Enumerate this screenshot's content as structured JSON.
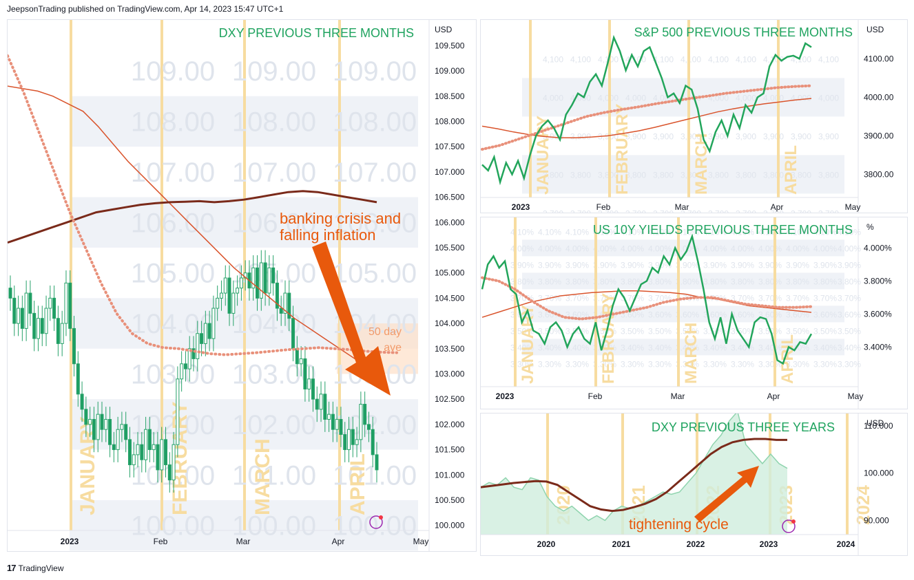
{
  "header": {
    "text": "JeepsonTrading published on TradingView.com, Apr 14, 2023 15:47 UTC+1"
  },
  "footer": {
    "logo": "17",
    "brand": "TradingView"
  },
  "colors": {
    "up": "#26a269",
    "down": "#1e9e63",
    "line_green": "#22a55b",
    "title_green": "#1fa35f",
    "ma_dark": "#7a2a1a",
    "ma_orange": "#d9532b",
    "ma_dotted": "#e8907a",
    "month_band": "#f7dca0",
    "price_band": "#e8edf3",
    "annotation": "#e8590c"
  },
  "chart_data": [
    {
      "id": "dxy3m",
      "type": "candlestick",
      "title": "DXY PREVIOUS THREE MONTHS",
      "unit": "USD",
      "ylim": [
        99.9,
        109.9
      ],
      "y_ticks": [
        "109.500",
        "109.000",
        "108.500",
        "108.000",
        "107.500",
        "107.000",
        "106.500",
        "106.000",
        "105.500",
        "105.000",
        "104.500",
        "104.000",
        "103.500",
        "103.000",
        "102.500",
        "102.000",
        "101.500",
        "101.000",
        "100.500",
        "100.000"
      ],
      "x_labels": [
        "2023",
        "Feb",
        "Mar",
        "Apr",
        "May"
      ],
      "month_labels": [
        "JANUARY",
        "FEBRUARY",
        "MARCH",
        "APRIL"
      ],
      "grid_values": [
        "109.00",
        "108.00",
        "107.00",
        "106.00",
        "105.00",
        "104.00",
        "103.00",
        "102.00",
        "101.00",
        "100.00"
      ],
      "closes": [
        104.5,
        104.0,
        104.3,
        103.9,
        104.6,
        104.2,
        103.7,
        104.1,
        103.8,
        104.3,
        104.5,
        104.1,
        103.6,
        104.0,
        104.8,
        103.9,
        103.2,
        102.6,
        102.3,
        102.0,
        102.1,
        101.7,
        102.2,
        101.9,
        102.1,
        101.6,
        101.5,
        101.9,
        102.0,
        101.7,
        101.2,
        101.4,
        101.6,
        101.3,
        101.9,
        101.5,
        101.6,
        101.1,
        101.7,
        101.2,
        100.9,
        101.6,
        102.9,
        103.2,
        103.1,
        103.5,
        103.3,
        103.8,
        103.6,
        104.0,
        103.7,
        104.3,
        104.5,
        104.6,
        104.9,
        104.2,
        104.6,
        104.7,
        104.9,
        105.0,
        104.7,
        105.1,
        104.5,
        105.2,
        104.6,
        105.1,
        104.8,
        104.3,
        104.2,
        104.6,
        104.1,
        103.5,
        103.2,
        103.3,
        102.7,
        102.9,
        102.5,
        102.3,
        102.6,
        102.1,
        102.2,
        101.9,
        102.1,
        101.8,
        101.5,
        101.9,
        101.6,
        101.7,
        102.4,
        102.0,
        101.9,
        101.4,
        101.1
      ],
      "ma200": [
        105.6,
        105.7,
        105.8,
        105.9,
        106.0,
        106.1,
        106.2,
        106.25,
        106.3,
        106.35,
        106.38,
        106.4,
        106.41,
        106.42,
        106.4,
        106.42,
        106.45,
        106.5,
        106.55,
        106.6,
        106.62,
        106.6,
        106.55,
        106.5,
        106.45,
        106.4
      ],
      "ma100": [
        108.7,
        108.65,
        108.6,
        108.5,
        108.35,
        108.2,
        107.9,
        107.55,
        107.2,
        106.9,
        106.6,
        106.3,
        106.0,
        105.7,
        105.4,
        105.1,
        104.85,
        104.6,
        104.35,
        104.1,
        103.9,
        103.7,
        103.5,
        103.3,
        103.1,
        102.9
      ],
      "ma50_dotted": [
        109.3,
        108.6,
        107.8,
        107.0,
        106.2,
        105.5,
        104.8,
        104.2,
        103.8,
        103.6,
        103.52,
        103.5,
        103.45,
        103.4,
        103.38,
        103.4,
        103.42,
        103.45,
        103.48,
        103.5,
        103.52,
        103.5,
        103.48,
        103.45,
        103.43,
        103.42
      ],
      "annotation": {
        "text_line1": "banking crisis and",
        "text_line2": "falling inflation",
        "obscured_label": "50 day",
        "obscured_label2": "ave"
      }
    },
    {
      "id": "spx3m",
      "type": "line",
      "title": "S&P 500 PREVIOUS THREE MONTHS",
      "unit": "USD",
      "ylim": [
        3740,
        4190
      ],
      "y_ticks": [
        "4100.00",
        "4000.00",
        "3900.00",
        "3800.00"
      ],
      "x_labels": [
        "2023",
        "Feb",
        "Mar",
        "Apr",
        "May"
      ],
      "month_labels": [
        "JANUARY",
        "FEBRUARY",
        "MARCH",
        "APRIL"
      ],
      "grid_values": [
        "4,100",
        "4,000",
        "3,900",
        "3,800",
        "3,700"
      ],
      "values": [
        3825,
        3810,
        3845,
        3780,
        3830,
        3800,
        3835,
        3790,
        3850,
        3900,
        3925,
        3940,
        3920,
        3890,
        3955,
        3980,
        4010,
        4000,
        4040,
        4060,
        4030,
        4090,
        4155,
        4120,
        4070,
        4110,
        4080,
        4120,
        4130,
        4090,
        4050,
        4000,
        4010,
        3985,
        4030,
        4020,
        3970,
        3890,
        3860,
        3910,
        3940,
        3900,
        3955,
        3920,
        3980,
        3960,
        4000,
        4010,
        4080,
        4110,
        4095,
        4105,
        4108,
        4100,
        4140,
        4130
      ],
      "ma200": [
        3925,
        3918,
        3910,
        3903,
        3898,
        3895,
        3895,
        3897,
        3900,
        3906,
        3913,
        3922,
        3932,
        3942,
        3952,
        3962,
        3970,
        3977,
        3983,
        3988,
        3993,
        3997
      ],
      "ma50_dotted": [
        3865,
        3875,
        3890,
        3905,
        3920,
        3935,
        3950,
        3960,
        3968,
        3975,
        3983,
        3990,
        3997,
        4003,
        4010,
        4015,
        4020,
        4025,
        4028,
        4030
      ]
    },
    {
      "id": "us10y3m",
      "type": "line",
      "title": "US 10Y YIELDS PREVIOUS THREE MONTHS",
      "unit": "%",
      "ylim": [
        3.16,
        4.16
      ],
      "y_ticks": [
        "4.000%",
        "3.800%",
        "3.600%",
        "3.400%"
      ],
      "x_labels": [
        "2023",
        "Feb",
        "Mar",
        "Apr",
        "May"
      ],
      "month_labels": [
        "JANUARY",
        "FEBRUARY",
        "MARCH",
        "APRIL"
      ],
      "grid_values": [
        "4.10%",
        "4.00%",
        "3.90%",
        "3.80%",
        "3.70%",
        "3.60%",
        "3.50%",
        "3.40%",
        "3.30%"
      ],
      "values": [
        3.75,
        3.9,
        3.95,
        3.88,
        3.92,
        3.75,
        3.72,
        3.55,
        3.62,
        3.5,
        3.48,
        3.42,
        3.52,
        3.55,
        3.5,
        3.4,
        3.48,
        3.52,
        3.45,
        3.42,
        3.55,
        3.38,
        3.5,
        3.65,
        3.75,
        3.7,
        3.62,
        3.7,
        3.78,
        3.8,
        3.88,
        3.85,
        3.95,
        3.9,
        4.0,
        3.93,
        3.98,
        4.07,
        3.92,
        3.75,
        3.55,
        3.45,
        3.58,
        3.42,
        3.6,
        3.5,
        3.45,
        3.4,
        3.55,
        3.58,
        3.57,
        3.48,
        3.32,
        3.3,
        3.4,
        3.38,
        3.43,
        3.42,
        3.48
      ],
      "ma200": [
        3.58,
        3.61,
        3.64,
        3.67,
        3.69,
        3.71,
        3.72,
        3.73,
        3.735,
        3.74,
        3.74,
        3.735,
        3.73,
        3.72,
        3.7,
        3.69,
        3.67,
        3.65,
        3.64,
        3.63,
        3.62,
        3.61
      ],
      "ma50_dotted": [
        3.82,
        3.8,
        3.75,
        3.68,
        3.62,
        3.58,
        3.57,
        3.58,
        3.6,
        3.62,
        3.64,
        3.67,
        3.69,
        3.7,
        3.7,
        3.68,
        3.66,
        3.65,
        3.64,
        3.64,
        3.645
      ]
    },
    {
      "id": "dxy3y",
      "type": "area",
      "title": "DXY PREVIOUS THREE YEARS",
      "unit": "USD",
      "ylim": [
        87,
        112
      ],
      "y_ticks": [
        "110.000",
        "100.000",
        "90.000"
      ],
      "x_labels": [
        "2020",
        "2021",
        "2022",
        "2023",
        "2024"
      ],
      "year_labels": [
        "2020",
        "2021",
        "2022",
        "2023",
        "2024"
      ],
      "values": [
        97,
        98,
        97.5,
        99,
        97,
        96.5,
        99,
        98.5,
        95,
        93,
        92,
        93,
        91.5,
        90,
        91,
        90,
        92,
        93,
        92.5,
        93,
        94,
        95,
        96,
        95.5,
        96,
        98,
        100,
        103,
        106,
        108,
        111,
        113,
        106,
        104,
        102,
        104,
        102,
        101
      ],
      "ma200": [
        97,
        97.3,
        97.6,
        97.9,
        98.1,
        98.3,
        98.2,
        97.5,
        96,
        94.5,
        93,
        92.3,
        92,
        92.2,
        92.8,
        93.5,
        94.5,
        96,
        98,
        100,
        102,
        104,
        105.5,
        106.5,
        107,
        107.2,
        107.2,
        107,
        107
      ],
      "annotation": {
        "text": "tightening cycle"
      }
    }
  ]
}
